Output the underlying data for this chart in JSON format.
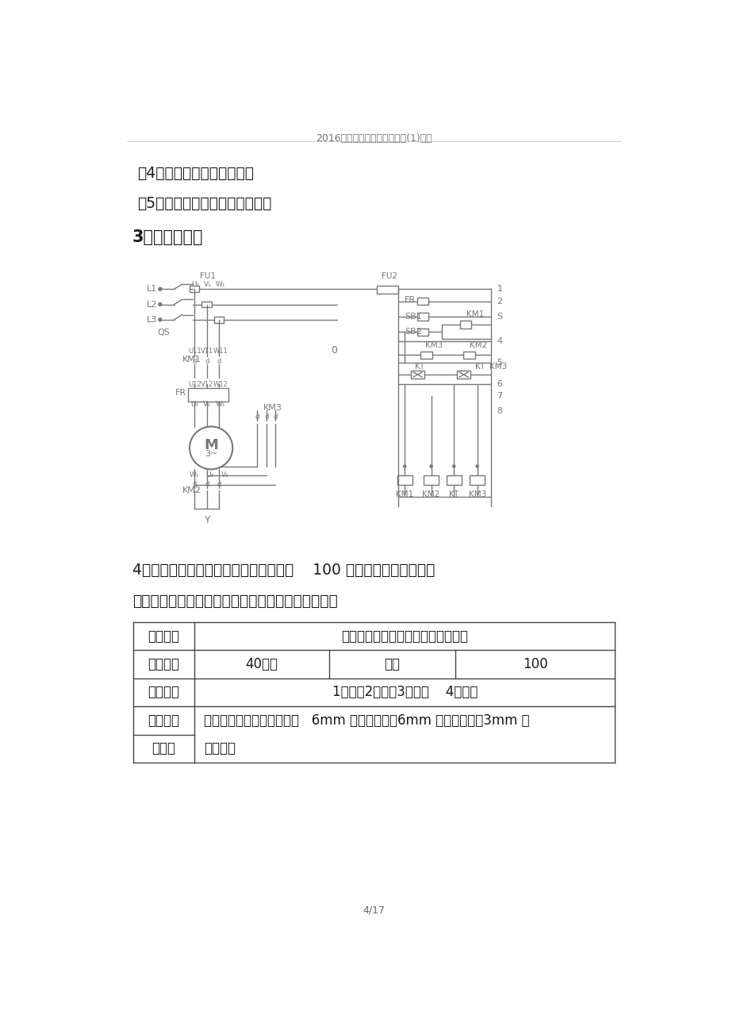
{
  "header": "2016年电工技术比武大赛试题(1)分析",
  "footer": "4/17",
  "bg_color": "#ffffff",
  "text_color": "#1a1a1a",
  "gray_color": "#888888",
  "line1": "（4）线路不同意有交错点。",
  "line2": "（5）做到工完、料净、场所清。",
  "section3": "3、接线原理图",
  "section4_title": "4、本次比武的评分方式为打分制，总分    100 分，严格依据电气操作",
  "section4_line2": "的规范性及合理性由评分小组进行打分，详见下表：",
  "row1_col1": "项目名称",
  "row1_col2": "电机星三角启动控制线路配盘安装。",
  "row2_col1": "考试时间",
  "row2_col2": "40分钟",
  "row2_col3": "得分",
  "row2_col4": "100",
  "row3_col1": "考试项目",
  "row3_col2": "1、接獹2、外观3、调试    4、时间",
  "row4_col1a": "工具资料",
  "row4_col1b": "备场所",
  "row4_col2a": "设工具：剥线陡、尖嘴陡、   6mm 一字螺丝刀、6mm 十字螺丝刀、3mm 十",
  "row4_col2b": "字螺丝刀"
}
